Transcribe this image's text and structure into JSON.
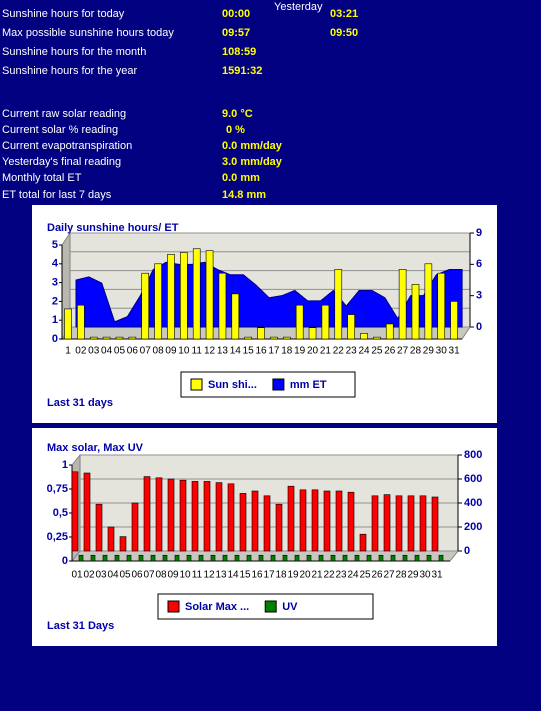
{
  "readings": {
    "yesterday_label": "Yesterday",
    "rows": [
      {
        "label": "Sunshine hours for today",
        "today": "00:00",
        "yesterday": "03:21"
      },
      {
        "label": "Max possible sunshine hours today",
        "today": "09:57",
        "yesterday": "09:50"
      },
      {
        "label": "Sunshine hours for the month",
        "today": "108:59"
      },
      {
        "label": "Sunshine hours for the year",
        "today": "1591:32"
      }
    ],
    "current": [
      {
        "label": "Current raw solar reading",
        "value": "9.0 °C"
      },
      {
        "label": "Current solar % reading",
        "value": "0 %"
      },
      {
        "label": "Current evapotranspiration",
        "value": "0.0 mm/day"
      },
      {
        "label": "Yesterday's final reading",
        "value": "3.0 mm/day"
      },
      {
        "label": "Monthly total ET",
        "value": "0.0 mm"
      },
      {
        "label": "ET total for last 7 days",
        "value": "14.8 mm"
      }
    ]
  },
  "chart_data": [
    {
      "type": "bar",
      "title": "Daily sunshine hours/ ET",
      "footer": "Last 31 days",
      "grid": true,
      "legend": "bottom",
      "categories": [
        "1",
        "02",
        "03",
        "04",
        "05",
        "06",
        "07",
        "08",
        "09",
        "10",
        "11",
        "12",
        "13",
        "14",
        "15",
        "16",
        "17",
        "18",
        "19",
        "20",
        "21",
        "22",
        "23",
        "24",
        "25",
        "26",
        "27",
        "28",
        "29",
        "30",
        "31"
      ],
      "series": [
        {
          "name": "Sun shi...",
          "type": "bar",
          "color": "#ffff00",
          "values": [
            1.6,
            1.8,
            0.1,
            0.1,
            0.1,
            0.1,
            3.5,
            4.0,
            4.5,
            4.6,
            4.8,
            4.7,
            3.5,
            2.4,
            0.1,
            0.6,
            0.1,
            0.1,
            1.8,
            0.6,
            1.8,
            3.7,
            1.3,
            0.3,
            0.1,
            0.8,
            3.7,
            2.9,
            4.0,
            3.5,
            2.0
          ]
        },
        {
          "name": "mm ET",
          "type": "area",
          "axis": "y2",
          "color": "#0000ff",
          "values": [
            4.5,
            4.8,
            4.2,
            0.5,
            1.0,
            3.0,
            5.5,
            6.2,
            6.0,
            6.0,
            6.2,
            5.5,
            5.0,
            5.0,
            4.0,
            2.8,
            3.0,
            3.5,
            2.5,
            2.5,
            3.5,
            2.0,
            3.5,
            3.5,
            2.8,
            0.8,
            3.0,
            3.0,
            5.0,
            5.5,
            5.5
          ]
        }
      ],
      "ylim": [
        0,
        5
      ],
      "yticks": [
        0,
        1,
        2,
        3,
        4,
        5
      ],
      "y2lim": [
        0,
        9
      ],
      "y2ticks": [
        0,
        3,
        6,
        9
      ]
    },
    {
      "type": "bar",
      "title": "Max solar, Max UV",
      "footer": "Last 31 Days",
      "grid": true,
      "legend": "bottom",
      "categories": [
        "01",
        "02",
        "03",
        "04",
        "05",
        "06",
        "07",
        "08",
        "09",
        "10",
        "11",
        "12",
        "13",
        "14",
        "15",
        "16",
        "17",
        "18",
        "19",
        "20",
        "21",
        "22",
        "23",
        "24",
        "25",
        "26",
        "27",
        "28",
        "29",
        "30",
        "31"
      ],
      "series": [
        {
          "name": "Solar Max ...",
          "type": "bar",
          "axis": "y2",
          "color": "#ff0000",
          "values": [
            660,
            650,
            390,
            200,
            120,
            400,
            620,
            610,
            600,
            590,
            580,
            580,
            570,
            560,
            480,
            500,
            460,
            390,
            540,
            510,
            510,
            500,
            500,
            490,
            140,
            460,
            470,
            460,
            460,
            460,
            450
          ]
        },
        {
          "name": "UV",
          "type": "bar",
          "color": "#008000",
          "values": [
            0.06,
            0.06,
            0.06,
            0.06,
            0.06,
            0.06,
            0.06,
            0.06,
            0.06,
            0.06,
            0.06,
            0.06,
            0.06,
            0.06,
            0.06,
            0.06,
            0.06,
            0.06,
            0.06,
            0.06,
            0.06,
            0.06,
            0.06,
            0.06,
            0.06,
            0.06,
            0.06,
            0.06,
            0.06,
            0.06,
            0.06
          ]
        }
      ],
      "ylim": [
        0,
        1
      ],
      "yticks": [
        0,
        {
          "value": 0.25,
          "label": "0,25"
        },
        {
          "value": 0.5,
          "label": "0,5"
        },
        {
          "value": 0.75,
          "label": "0,75"
        },
        1
      ],
      "y2lim": [
        0,
        800
      ],
      "y2ticks": [
        0,
        200,
        400,
        600,
        800
      ]
    }
  ]
}
